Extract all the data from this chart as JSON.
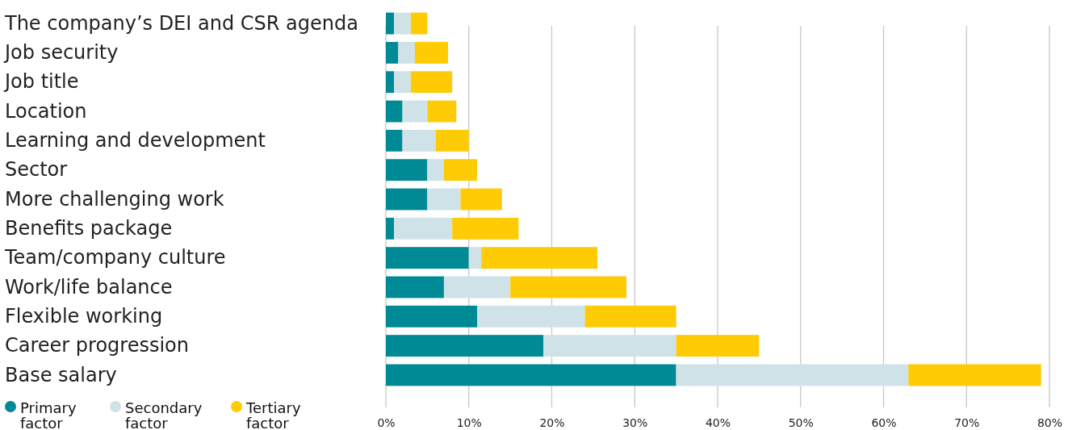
{
  "chart_data": {
    "type": "bar",
    "orientation": "horizontal",
    "stacked": true,
    "categories": [
      "The company’s DEI and CSR agenda",
      "Job security",
      "Job title",
      "Location",
      "Learning and development",
      "Sector",
      "More challenging work",
      "Benefits package",
      "Team/company culture",
      "Work/life balance",
      "Flexible working",
      "Career progression",
      "Base salary"
    ],
    "series": [
      {
        "name": "Primary factor",
        "color": "#008a96",
        "values": [
          1,
          1.5,
          1,
          2,
          2,
          5,
          5,
          1,
          10,
          7,
          11,
          19,
          35
        ]
      },
      {
        "name": "Secondary factor",
        "color": "#cfe2e8",
        "values": [
          2,
          2,
          2,
          3,
          4,
          2,
          4,
          7,
          1.5,
          8,
          13,
          16,
          28
        ]
      },
      {
        "name": "Tertiary factor",
        "color": "#fecb05",
        "values": [
          2,
          4,
          5,
          3.5,
          4,
          4,
          5,
          8,
          14,
          14,
          11,
          10,
          16
        ]
      }
    ],
    "xlim": [
      0,
      80
    ],
    "xticks": [
      {
        "value": 0,
        "label": "0%"
      },
      {
        "value": 10,
        "label": "10%"
      },
      {
        "value": 20,
        "label": "20%"
      },
      {
        "value": 30,
        "label": "30%"
      },
      {
        "value": 40,
        "label": "40%"
      },
      {
        "value": 50,
        "label": "50%"
      },
      {
        "value": 60,
        "label": "60%"
      },
      {
        "value": 70,
        "label": "70%"
      },
      {
        "value": 80,
        "label": "80%"
      }
    ],
    "grid": "x",
    "legend": "bottom left"
  }
}
